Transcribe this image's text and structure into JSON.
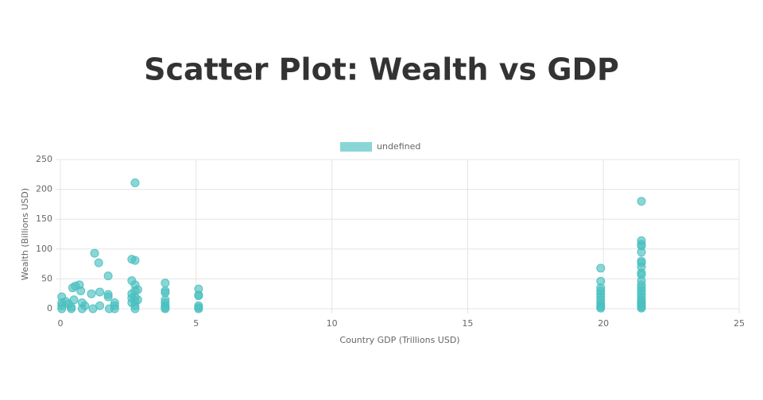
{
  "chart_data": {
    "type": "scatter",
    "title": "Scatter Plot: Wealth vs GDP",
    "x_label": "Country GDP (Trillions USD)",
    "y_label": "Wealth (Billions USD)",
    "x": [
      0.05,
      0.05,
      0.05,
      0.05,
      0.2,
      0.3,
      0.4,
      0.45,
      0.5,
      0.55,
      0.7,
      0.75,
      0.8,
      0.9,
      0.4,
      0.8,
      1.14,
      1.26,
      1.41,
      1.45,
      1.2,
      1.45,
      1.76,
      1.76,
      1.76,
      2.0,
      2.0,
      2.0,
      1.8,
      2.63,
      2.63,
      2.63,
      2.63,
      2.63,
      2.75,
      2.75,
      2.75,
      2.75,
      2.75,
      2.75,
      2.75,
      2.75,
      2.85,
      2.85,
      3.86,
      3.86,
      3.86,
      3.86,
      3.86,
      3.86,
      3.86,
      3.86,
      5.09,
      5.09,
      5.09,
      5.09,
      5.09,
      5.09,
      19.9,
      19.9,
      19.9,
      19.9,
      19.9,
      19.9,
      19.9,
      19.9,
      19.9,
      19.9,
      19.9,
      21.4,
      21.4,
      21.4,
      21.4,
      21.4,
      21.4,
      21.4,
      21.4,
      21.4,
      21.4,
      21.4,
      21.4,
      21.4,
      21.4,
      21.4,
      21.4,
      21.4,
      21.4,
      21.4,
      21.4,
      21.4,
      21.4,
      21.4
    ],
    "series": [
      {
        "name": "undefined",
        "color": "#4bc0c0",
        "values": [
          20,
          10,
          5,
          0,
          12,
          8,
          3,
          35,
          15,
          38,
          40,
          30,
          10,
          5,
          0,
          0,
          25,
          93,
          77,
          28,
          0,
          5,
          55,
          24,
          20,
          10,
          5,
          0,
          0,
          83,
          47,
          25,
          18,
          10,
          211,
          81,
          40,
          30,
          20,
          12,
          5,
          0,
          32,
          15,
          43,
          30,
          27,
          15,
          10,
          5,
          2,
          0,
          33,
          23,
          22,
          5,
          2,
          0,
          68,
          46,
          35,
          30,
          25,
          20,
          15,
          10,
          6,
          3,
          1,
          180,
          114,
          108,
          105,
          95,
          80,
          77,
          70,
          60,
          57,
          47,
          40,
          35,
          30,
          25,
          20,
          15,
          12,
          10,
          8,
          5,
          3,
          1
        ]
      }
    ],
    "xlim": [
      0,
      25
    ],
    "xticks": [
      0,
      5,
      10,
      15,
      20,
      25
    ],
    "ylim": [
      0,
      250
    ],
    "yticks": [
      0,
      50,
      100,
      150,
      200,
      250
    ],
    "grid": true,
    "legend": "top"
  }
}
